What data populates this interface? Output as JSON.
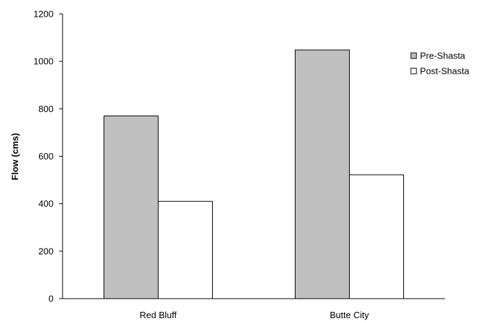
{
  "chart_data": {
    "type": "bar",
    "title": "",
    "xlabel": "",
    "ylabel": "Flow (cms)",
    "ylim": [
      0,
      1200
    ],
    "yticks": [
      "0",
      "200",
      "400",
      "600",
      "800",
      "1000",
      "1200"
    ],
    "categories": [
      "Red Bluff",
      "Butte City"
    ],
    "series": [
      {
        "name": "Pre-Shasta",
        "values": [
          770,
          1048
        ],
        "color": "#c0c0c0"
      },
      {
        "name": "Post-Shasta",
        "values": [
          410,
          522
        ],
        "color": "#ffffff"
      }
    ],
    "grid": false,
    "legend_position": "right"
  }
}
